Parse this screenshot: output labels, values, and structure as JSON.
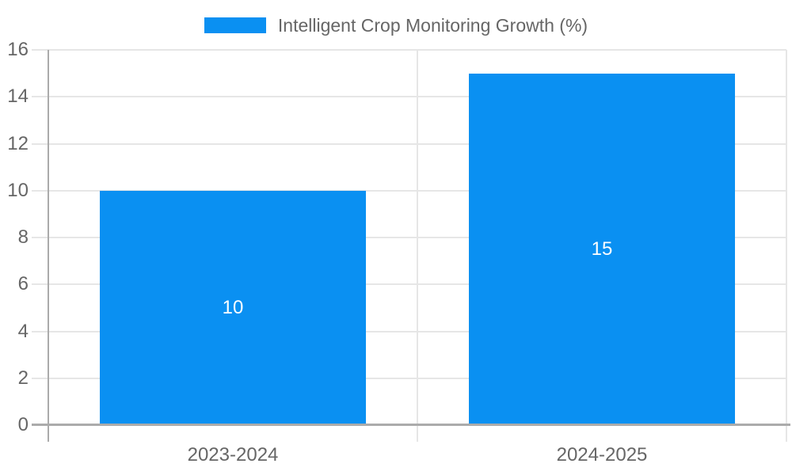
{
  "chart_data": {
    "type": "bar",
    "title": "Intelligent Crop Monitoring Growth (%)",
    "categories": [
      "2023-2024",
      "2024-2025"
    ],
    "series": [
      {
        "name": "Intelligent Crop Monitoring Growth (%)",
        "values": [
          10,
          15
        ]
      }
    ],
    "value_labels": [
      "10",
      "15"
    ],
    "xlabel": "",
    "ylabel": "",
    "ylim": [
      0,
      16
    ],
    "yticks": [
      0,
      2,
      4,
      6,
      8,
      10,
      12,
      14,
      16
    ],
    "grid": true,
    "legend_position": "top-center"
  },
  "colors": {
    "bar": "#0a90f2",
    "bar_label_text": "#ffffff",
    "axis_line": "#ababab",
    "gridline": "#e6e6e6",
    "tick_text": "#666666",
    "legend_text": "#666666",
    "background": "#ffffff"
  }
}
